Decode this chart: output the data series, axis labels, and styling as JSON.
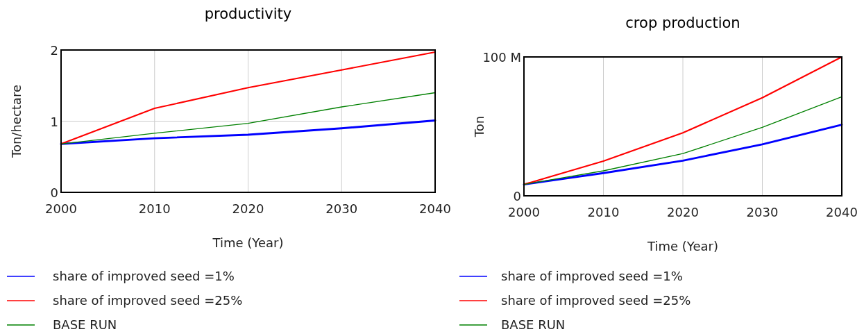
{
  "chart_data": [
    {
      "type": "line",
      "title": "productivity",
      "xlabel": "Time (Year)",
      "ylabel": "Ton/hectare",
      "x": [
        2000,
        2010,
        2020,
        2030,
        2040
      ],
      "xlim": [
        2000,
        2040
      ],
      "xticks": [
        2000,
        2010,
        2020,
        2030,
        2040
      ],
      "ylim": [
        0,
        2
      ],
      "yticks": [
        0,
        1,
        2
      ],
      "grid": true,
      "legend": "bottom",
      "series": [
        {
          "name": "share of improved seed =1%",
          "color": "#0000ff",
          "values": [
            0.68,
            0.76,
            0.81,
            0.9,
            1.01
          ]
        },
        {
          "name": "share of improved seed =25%",
          "color": "#ff0000",
          "values": [
            0.68,
            1.18,
            1.47,
            1.72,
            1.97
          ]
        },
        {
          "name": "BASE RUN",
          "color": "#008000",
          "values": [
            0.68,
            0.83,
            0.97,
            1.2,
            1.4
          ]
        }
      ]
    },
    {
      "type": "line",
      "title": "crop production",
      "xlabel": "Time (Year)",
      "ylabel": "Ton",
      "x": [
        2000,
        2010,
        2020,
        2030,
        2040
      ],
      "xlim": [
        2000,
        2040
      ],
      "xticks": [
        2000,
        2010,
        2020,
        2030,
        2040
      ],
      "ylim": [
        0,
        100000000
      ],
      "yticks": [
        0,
        {
          "value": 100000000,
          "label": "100 M"
        }
      ],
      "grid": "x",
      "legend": "bottom",
      "series": [
        {
          "name": "share of improved seed =1%",
          "color": "#0000ff",
          "values": [
            8200000,
            16400000,
            25300000,
            37100000,
            51200000
          ]
        },
        {
          "name": "share of improved seed =25%",
          "color": "#ff0000",
          "values": [
            8200000,
            25000000,
            45400000,
            70600000,
            100000000
          ]
        },
        {
          "name": "BASE RUN",
          "color": "#008000",
          "values": [
            8200000,
            18000000,
            30400000,
            49300000,
            71300000
          ]
        }
      ]
    }
  ]
}
